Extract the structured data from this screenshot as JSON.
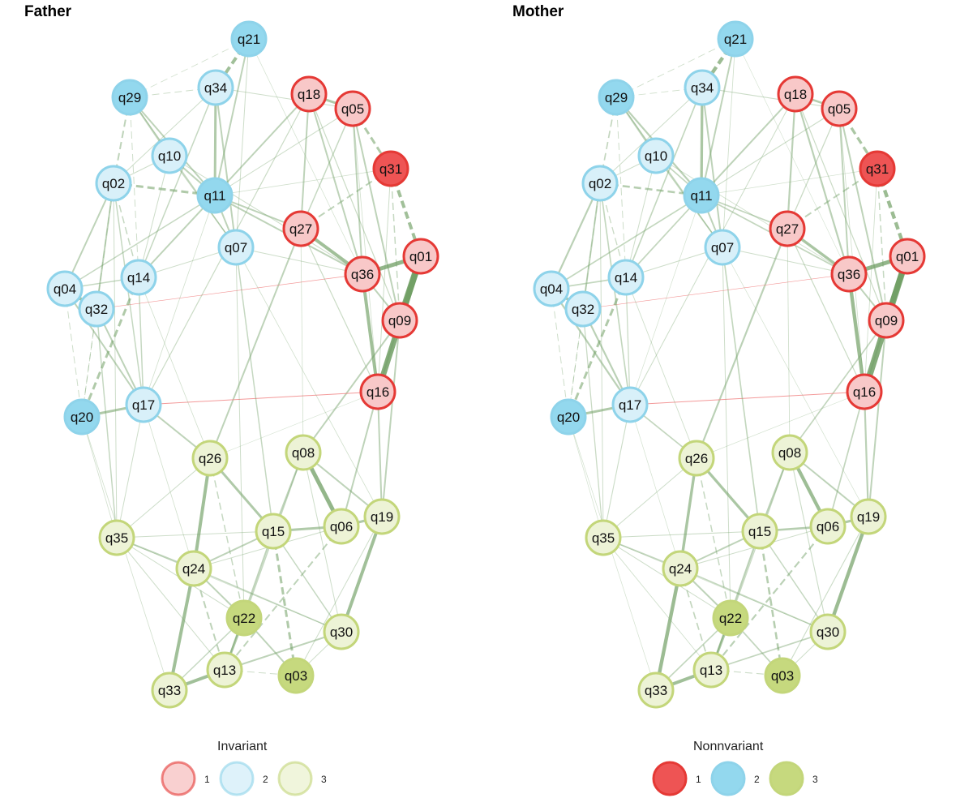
{
  "panels": [
    {
      "id": "father",
      "title": "Father"
    },
    {
      "id": "mother",
      "title": "Mother"
    }
  ],
  "groups": {
    "1": {
      "stroke": "#E53935",
      "light_fill": "#F8C8C8",
      "dark_fill": "#EE5454"
    },
    "2": {
      "stroke": "#8ED3EA",
      "light_fill": "#D8F0F9",
      "dark_fill": "#93D8EE"
    },
    "3": {
      "stroke": "#C3D67A",
      "light_fill": "#EDF3D6",
      "dark_fill": "#C6D97E"
    }
  },
  "edge_colors": {
    "positive": "#6F9E63",
    "negative": "#F08080"
  },
  "nodes": [
    {
      "label": "q21",
      "group": "2",
      "shade": "dark"
    },
    {
      "label": "q29",
      "group": "2",
      "shade": "dark"
    },
    {
      "label": "q34",
      "group": "2",
      "shade": "light"
    },
    {
      "label": "q18",
      "group": "1",
      "shade": "light"
    },
    {
      "label": "q05",
      "group": "1",
      "shade": "light"
    },
    {
      "label": "q10",
      "group": "2",
      "shade": "light"
    },
    {
      "label": "q31",
      "group": "1",
      "shade": "dark"
    },
    {
      "label": "q02",
      "group": "2",
      "shade": "light"
    },
    {
      "label": "q11",
      "group": "2",
      "shade": "dark"
    },
    {
      "label": "q27",
      "group": "1",
      "shade": "light"
    },
    {
      "label": "q07",
      "group": "2",
      "shade": "light"
    },
    {
      "label": "q01",
      "group": "1",
      "shade": "light"
    },
    {
      "label": "q36",
      "group": "1",
      "shade": "light"
    },
    {
      "label": "q14",
      "group": "2",
      "shade": "light"
    },
    {
      "label": "q04",
      "group": "2",
      "shade": "light"
    },
    {
      "label": "q32",
      "group": "2",
      "shade": "light"
    },
    {
      "label": "q09",
      "group": "1",
      "shade": "light"
    },
    {
      "label": "q16",
      "group": "1",
      "shade": "light"
    },
    {
      "label": "q20",
      "group": "2",
      "shade": "dark"
    },
    {
      "label": "q17",
      "group": "2",
      "shade": "light"
    },
    {
      "label": "q26",
      "group": "3",
      "shade": "light"
    },
    {
      "label": "q08",
      "group": "3",
      "shade": "light"
    },
    {
      "label": "q19",
      "group": "3",
      "shade": "light"
    },
    {
      "label": "q06",
      "group": "3",
      "shade": "light"
    },
    {
      "label": "q15",
      "group": "3",
      "shade": "light"
    },
    {
      "label": "q35",
      "group": "3",
      "shade": "light"
    },
    {
      "label": "q24",
      "group": "3",
      "shade": "light"
    },
    {
      "label": "q22",
      "group": "3",
      "shade": "dark"
    },
    {
      "label": "q30",
      "group": "3",
      "shade": "light"
    },
    {
      "label": "q13",
      "group": "3",
      "shade": "light"
    },
    {
      "label": "q03",
      "group": "3",
      "shade": "dark"
    },
    {
      "label": "q33",
      "group": "3",
      "shade": "light"
    }
  ],
  "edges": [
    {
      "a": "q01",
      "b": "q09",
      "w": 8,
      "sign": "pos"
    },
    {
      "a": "q01",
      "b": "q16",
      "w": 7,
      "sign": "pos"
    },
    {
      "a": "q01",
      "b": "q36",
      "w": 5,
      "sign": "pos"
    },
    {
      "a": "q36",
      "b": "q27",
      "w": 4,
      "sign": "pos"
    },
    {
      "a": "q36",
      "b": "q16",
      "w": 4,
      "sign": "pos"
    },
    {
      "a": "q36",
      "b": "q05",
      "w": 2,
      "sign": "pos"
    },
    {
      "a": "q36",
      "b": "q11",
      "w": 2,
      "sign": "pos"
    },
    {
      "a": "q36",
      "b": "q18",
      "w": 2,
      "sign": "pos"
    },
    {
      "a": "q36",
      "b": "q09",
      "w": 2,
      "sign": "pos"
    },
    {
      "a": "q05",
      "b": "q18",
      "w": 3,
      "sign": "pos"
    },
    {
      "a": "q05",
      "b": "q31",
      "w": 3,
      "sign": "pos",
      "dash": true
    },
    {
      "a": "q05",
      "b": "q09",
      "w": 2,
      "sign": "pos"
    },
    {
      "a": "q05",
      "b": "q27",
      "w": 1.5,
      "sign": "pos"
    },
    {
      "a": "q31",
      "b": "q01",
      "w": 4,
      "sign": "pos",
      "dash": true
    },
    {
      "a": "q31",
      "b": "q27",
      "w": 2,
      "sign": "pos",
      "dash": true
    },
    {
      "a": "q31",
      "b": "q16",
      "w": 1,
      "sign": "pos"
    },
    {
      "a": "q18",
      "b": "q27",
      "w": 2,
      "sign": "pos"
    },
    {
      "a": "q18",
      "b": "q11",
      "w": 2,
      "sign": "pos"
    },
    {
      "a": "q27",
      "b": "q11",
      "w": 2,
      "sign": "pos"
    },
    {
      "a": "q27",
      "b": "q26",
      "w": 2,
      "sign": "pos"
    },
    {
      "a": "q09",
      "b": "q16",
      "w": 2,
      "sign": "pos"
    },
    {
      "a": "q09",
      "b": "q08",
      "w": 2,
      "sign": "pos"
    },
    {
      "a": "q16",
      "b": "q19",
      "w": 2,
      "sign": "pos"
    },
    {
      "a": "q16",
      "b": "q17",
      "w": 1,
      "sign": "neg"
    },
    {
      "a": "q36",
      "b": "q32",
      "w": 0.7,
      "sign": "neg"
    },
    {
      "a": "q21",
      "b": "q34",
      "w": 4,
      "sign": "pos",
      "dash": true
    },
    {
      "a": "q21",
      "b": "q11",
      "w": 2,
      "sign": "pos"
    },
    {
      "a": "q21",
      "b": "q07",
      "w": 1,
      "sign": "pos"
    },
    {
      "a": "q34",
      "b": "q11",
      "w": 3,
      "sign": "pos"
    },
    {
      "a": "q34",
      "b": "q07",
      "w": 2,
      "sign": "pos"
    },
    {
      "a": "q34",
      "b": "q29",
      "w": 1,
      "sign": "pos",
      "dash": true
    },
    {
      "a": "q34",
      "b": "q14",
      "w": 1.5,
      "sign": "pos"
    },
    {
      "a": "q29",
      "b": "q10",
      "w": 2,
      "sign": "pos"
    },
    {
      "a": "q29",
      "b": "q02",
      "w": 2,
      "sign": "pos",
      "dash": true
    },
    {
      "a": "q29",
      "b": "q11",
      "w": 2,
      "sign": "pos"
    },
    {
      "a": "q29",
      "b": "q14",
      "w": 1,
      "sign": "pos",
      "dash": true
    },
    {
      "a": "q10",
      "b": "q11",
      "w": 2,
      "sign": "pos"
    },
    {
      "a": "q10",
      "b": "q07",
      "w": 1.5,
      "sign": "pos"
    },
    {
      "a": "q10",
      "b": "q02",
      "w": 1,
      "sign": "pos"
    },
    {
      "a": "q02",
      "b": "q11",
      "w": 3,
      "sign": "pos",
      "dash": true
    },
    {
      "a": "q02",
      "b": "q04",
      "w": 2,
      "sign": "pos"
    },
    {
      "a": "q02",
      "b": "q32",
      "w": 2,
      "sign": "pos"
    },
    {
      "a": "q02",
      "b": "q14",
      "w": 1.5,
      "sign": "pos",
      "dash": true
    },
    {
      "a": "q02",
      "b": "q17",
      "w": 1.5,
      "sign": "pos"
    },
    {
      "a": "q11",
      "b": "q07",
      "w": 2,
      "sign": "pos"
    },
    {
      "a": "q11",
      "b": "q14",
      "w": 2,
      "sign": "pos"
    },
    {
      "a": "q11",
      "b": "q04",
      "w": 1.5,
      "sign": "pos"
    },
    {
      "a": "q14",
      "b": "q20",
      "w": 3,
      "sign": "pos",
      "dash": true
    },
    {
      "a": "q14",
      "b": "q17",
      "w": 1.5,
      "sign": "pos"
    },
    {
      "a": "q14",
      "b": "q04",
      "w": 1.5,
      "sign": "pos"
    },
    {
      "a": "q14",
      "b": "q07",
      "w": 1,
      "sign": "pos"
    },
    {
      "a": "q04",
      "b": "q32",
      "w": 4,
      "sign": "pos"
    },
    {
      "a": "q04",
      "b": "q17",
      "w": 2,
      "sign": "pos"
    },
    {
      "a": "q04",
      "b": "q20",
      "w": 1,
      "sign": "pos",
      "dash": true
    },
    {
      "a": "q32",
      "b": "q35",
      "w": 1.5,
      "sign": "pos"
    },
    {
      "a": "q32",
      "b": "q17",
      "w": 2,
      "sign": "pos"
    },
    {
      "a": "q17",
      "b": "q20",
      "w": 3,
      "sign": "pos"
    },
    {
      "a": "q17",
      "b": "q26",
      "w": 2,
      "sign": "pos"
    },
    {
      "a": "q07",
      "b": "q15",
      "w": 1.5,
      "sign": "pos"
    },
    {
      "a": "q07",
      "b": "q22",
      "w": 1,
      "sign": "pos"
    },
    {
      "a": "q26",
      "b": "q24",
      "w": 4,
      "sign": "pos"
    },
    {
      "a": "q26",
      "b": "q15",
      "w": 3,
      "sign": "pos"
    },
    {
      "a": "q26",
      "b": "q22",
      "w": 1.5,
      "sign": "pos",
      "dash": true
    },
    {
      "a": "q08",
      "b": "q06",
      "w": 5,
      "sign": "pos"
    },
    {
      "a": "q08",
      "b": "q15",
      "w": 2,
      "sign": "pos"
    },
    {
      "a": "q08",
      "b": "q19",
      "w": 2,
      "sign": "pos"
    },
    {
      "a": "q08",
      "b": "q22",
      "w": 1.5,
      "sign": "pos"
    },
    {
      "a": "q19",
      "b": "q30",
      "w": 4,
      "sign": "pos"
    },
    {
      "a": "q19",
      "b": "q06",
      "w": 3,
      "sign": "pos"
    },
    {
      "a": "q06",
      "b": "q15",
      "w": 3,
      "sign": "pos"
    },
    {
      "a": "q06",
      "b": "q13",
      "w": 2,
      "sign": "pos",
      "dash": true
    },
    {
      "a": "q15",
      "b": "q24",
      "w": 2,
      "sign": "pos"
    },
    {
      "a": "q15",
      "b": "q03",
      "w": 3,
      "sign": "pos",
      "dash": true
    },
    {
      "a": "q15",
      "b": "q13",
      "w": 2,
      "sign": "pos"
    },
    {
      "a": "q15",
      "b": "q30",
      "w": 1.5,
      "sign": "pos"
    },
    {
      "a": "q35",
      "b": "q24",
      "w": 2,
      "sign": "pos"
    },
    {
      "a": "q35",
      "b": "q15",
      "w": 1,
      "sign": "pos"
    },
    {
      "a": "q35",
      "b": "q22",
      "w": 1,
      "sign": "pos"
    },
    {
      "a": "q35",
      "b": "q13",
      "w": 1,
      "sign": "pos"
    },
    {
      "a": "q24",
      "b": "q33",
      "w": 4,
      "sign": "pos"
    },
    {
      "a": "q24",
      "b": "q22",
      "w": 2,
      "sign": "pos"
    },
    {
      "a": "q24",
      "b": "q13",
      "w": 2,
      "sign": "pos",
      "dash": true
    },
    {
      "a": "q24",
      "b": "q30",
      "w": 1.5,
      "sign": "pos"
    },
    {
      "a": "q22",
      "b": "q13",
      "w": 3,
      "sign": "pos"
    },
    {
      "a": "q22",
      "b": "q03",
      "w": 2,
      "sign": "pos"
    },
    {
      "a": "q22",
      "b": "q33",
      "w": 1.5,
      "sign": "pos"
    },
    {
      "a": "q13",
      "b": "q33",
      "w": 4,
      "sign": "pos"
    },
    {
      "a": "q13",
      "b": "q30",
      "w": 2,
      "sign": "pos"
    },
    {
      "a": "q13",
      "b": "q03",
      "w": 1,
      "sign": "pos",
      "dash": true
    },
    {
      "a": "q03",
      "b": "q30",
      "w": 1,
      "sign": "pos"
    },
    {
      "a": "q20",
      "b": "q35",
      "w": 0.8,
      "sign": "pos"
    },
    {
      "a": "q17",
      "b": "q35",
      "w": 1,
      "sign": "pos"
    },
    {
      "a": "q09",
      "b": "q19",
      "w": 2,
      "sign": "pos"
    },
    {
      "a": "q16",
      "b": "q06",
      "w": 2,
      "sign": "pos"
    },
    {
      "a": "q16",
      "b": "q26",
      "w": 0.6,
      "sign": "pos"
    },
    {
      "a": "q07",
      "b": "q36",
      "w": 1,
      "sign": "pos"
    },
    {
      "a": "q18",
      "b": "q17",
      "w": 1.2,
      "sign": "pos"
    },
    {
      "a": "q05",
      "b": "q11",
      "w": 1,
      "sign": "pos"
    },
    {
      "a": "q18",
      "b": "q09",
      "w": 1.2,
      "sign": "pos"
    },
    {
      "a": "q10",
      "b": "q36",
      "w": 1,
      "sign": "pos"
    },
    {
      "a": "q29",
      "b": "q07",
      "w": 1.2,
      "sign": "pos"
    },
    {
      "a": "q27",
      "b": "q16",
      "w": 1.2,
      "sign": "pos"
    },
    {
      "a": "q11",
      "b": "q17",
      "w": 0.8,
      "sign": "pos"
    },
    {
      "a": "q21",
      "b": "q29",
      "w": 0.8,
      "sign": "pos",
      "dash": true
    },
    {
      "a": "q34",
      "b": "q02",
      "w": 1,
      "sign": "pos"
    },
    {
      "a": "q02",
      "b": "q20",
      "w": 1,
      "sign": "pos",
      "dash": true
    },
    {
      "a": "q08",
      "b": "q30",
      "w": 1,
      "sign": "pos"
    },
    {
      "a": "q26",
      "b": "q35",
      "w": 1,
      "sign": "pos"
    },
    {
      "a": "q07",
      "b": "q19",
      "w": 0.8,
      "sign": "pos"
    },
    {
      "a": "q27",
      "b": "q08",
      "w": 0.8,
      "sign": "pos"
    },
    {
      "a": "q05",
      "b": "q16",
      "w": 0.8,
      "sign": "pos"
    },
    {
      "a": "q21",
      "b": "q36",
      "w": 0.7,
      "sign": "pos"
    },
    {
      "a": "q34",
      "b": "q05",
      "w": 1,
      "sign": "pos"
    },
    {
      "a": "q31",
      "b": "q09",
      "w": 1.5,
      "sign": "pos",
      "dash": true
    },
    {
      "a": "q17",
      "b": "q24",
      "w": 0.8,
      "sign": "pos"
    },
    {
      "a": "q14",
      "b": "q26",
      "w": 0.8,
      "sign": "pos"
    },
    {
      "a": "q02",
      "b": "q35",
      "w": 1,
      "sign": "pos"
    },
    {
      "a": "q20",
      "b": "q33",
      "w": 0.8,
      "sign": "pos"
    },
    {
      "a": "q32",
      "b": "q20",
      "w": 1,
      "sign": "pos",
      "dash": true
    },
    {
      "a": "q10",
      "b": "q14",
      "w": 1,
      "sign": "pos"
    },
    {
      "a": "q11",
      "b": "q31",
      "w": 0.8,
      "sign": "pos"
    },
    {
      "a": "q19",
      "b": "q03",
      "w": 1,
      "sign": "pos"
    },
    {
      "a": "q06",
      "b": "q24",
      "w": 1,
      "sign": "pos"
    },
    {
      "a": "q35",
      "b": "q30",
      "w": 0.8,
      "sign": "pos"
    }
  ],
  "legends": [
    {
      "title": "Invariant",
      "shade": "light",
      "items": [
        {
          "group": "1",
          "label": "1"
        },
        {
          "group": "2",
          "label": "2"
        },
        {
          "group": "3",
          "label": "3"
        }
      ]
    },
    {
      "title": "Nonnvariant",
      "shade": "dark",
      "items": [
        {
          "group": "1",
          "label": "1"
        },
        {
          "group": "2",
          "label": "2"
        },
        {
          "group": "3",
          "label": "3"
        }
      ]
    }
  ]
}
